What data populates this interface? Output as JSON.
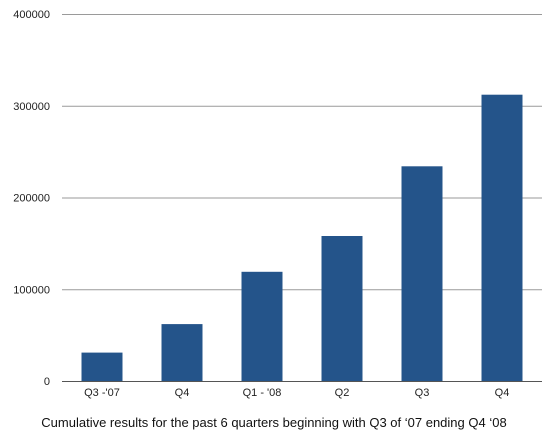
{
  "chart_data": {
    "type": "bar",
    "categories": [
      "Q3 -'07",
      "Q4",
      "Q1 - '08",
      "Q2",
      "Q3",
      "Q4"
    ],
    "values": [
      31000,
      62000,
      119000,
      158000,
      234000,
      312000
    ],
    "ylim": [
      0,
      400000
    ],
    "yticks": [
      "0",
      "100000",
      "200000",
      "300000",
      "400000"
    ],
    "title": "",
    "xlabel": "",
    "ylabel": "",
    "caption": "Cumulative results for the past 6 quarters beginning with Q3 of ‘07 ending Q4 ‘08",
    "grid": true,
    "bar_color": "#24548a",
    "grid_color": "#9a9a9a"
  }
}
